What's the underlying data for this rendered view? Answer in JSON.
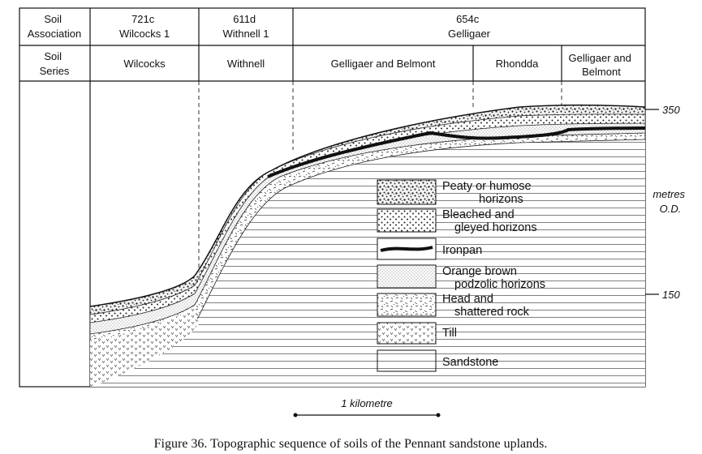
{
  "table": {
    "row1_label": [
      "Soil",
      "Association"
    ],
    "row2_label": [
      "Soil",
      "Series"
    ],
    "associations": [
      {
        "code": "721c",
        "name": "Wilcocks 1"
      },
      {
        "code": "611d",
        "name": "Withnell 1"
      },
      {
        "code": "654c",
        "name": "Gelligaer"
      }
    ],
    "series": [
      [
        "Wilcocks"
      ],
      [
        "Withnell"
      ],
      [
        "Gelligaer and Belmont"
      ],
      [
        "Rhondda"
      ],
      [
        "Gelligaer and",
        "Belmont"
      ]
    ]
  },
  "axis": {
    "tick_high": "350",
    "tick_low": "150",
    "unit": [
      "metres",
      "O.D."
    ]
  },
  "legend": [
    {
      "pattern": "peaty",
      "lines": [
        "Peaty or humose",
        "horizons"
      ]
    },
    {
      "pattern": "bleached",
      "lines": [
        "Bleached and",
        "gleyed horizons"
      ]
    },
    {
      "pattern": "ironpan",
      "lines": [
        "Ironpan"
      ]
    },
    {
      "pattern": "orange",
      "lines": [
        "Orange brown",
        "podzolic horizons"
      ]
    },
    {
      "pattern": "head",
      "lines": [
        "Head and",
        "shattered rock"
      ]
    },
    {
      "pattern": "till",
      "lines": [
        "Till"
      ]
    },
    {
      "pattern": "sandstone",
      "lines": [
        "Sandstone"
      ]
    }
  ],
  "scale_bar": {
    "label": "1 kilometre"
  },
  "caption": "Figure 36. Topographic sequence of soils of the Pennant sandstone uplands."
}
